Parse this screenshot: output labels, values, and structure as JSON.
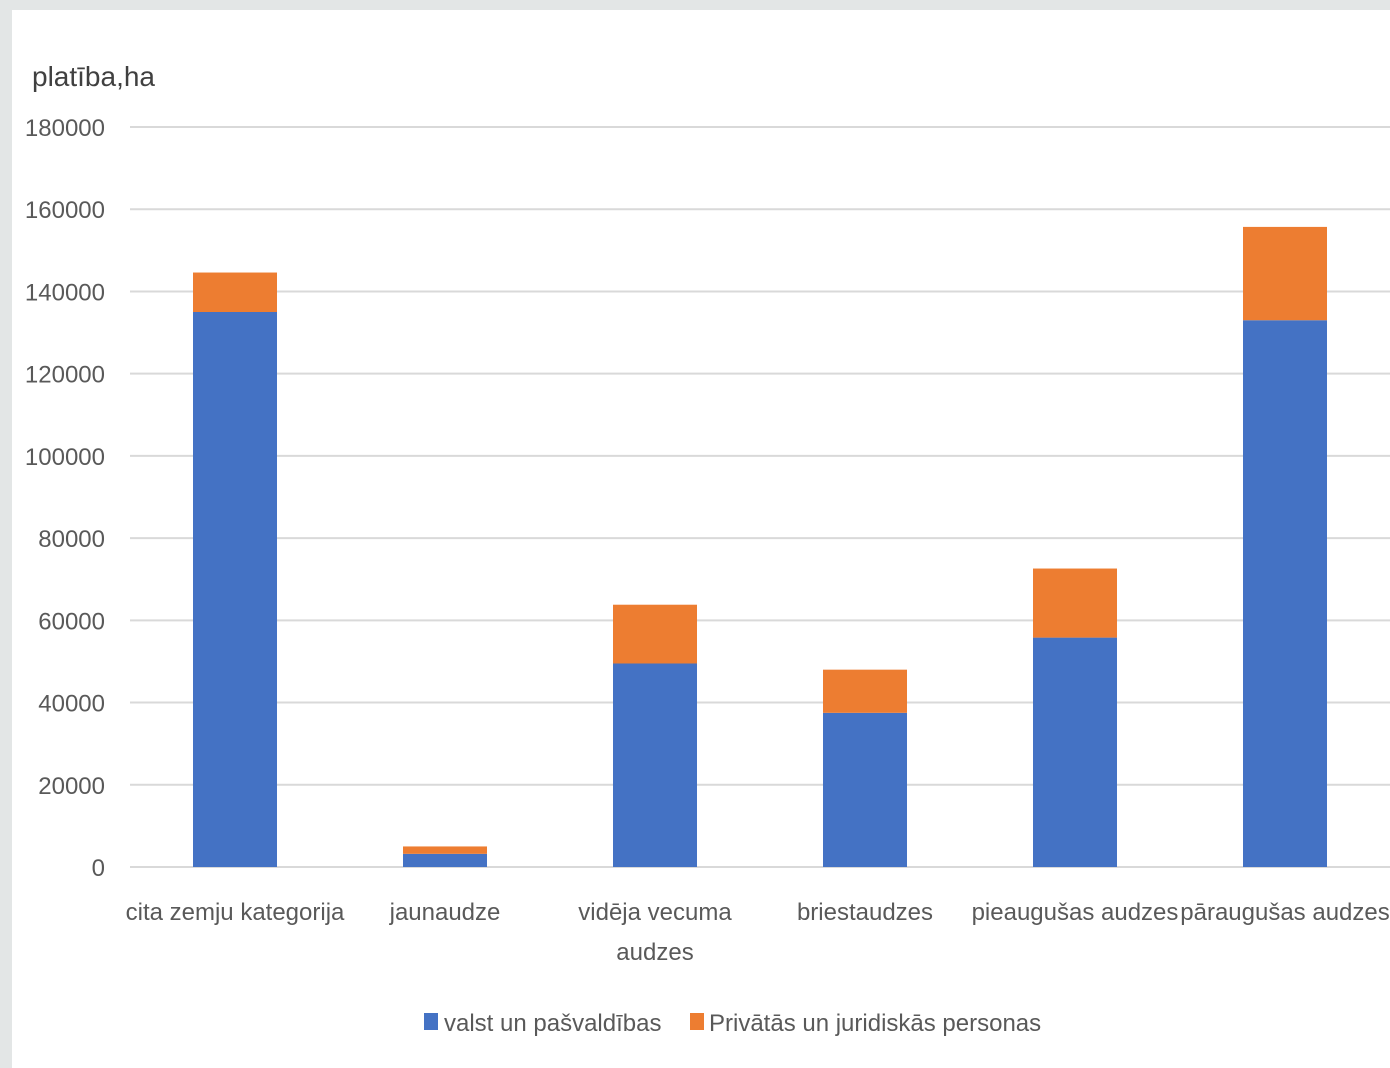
{
  "chart_data": {
    "type": "bar",
    "stacked": true,
    "ylabel": "platība,ha",
    "ylim": [
      0,
      180000
    ],
    "yticks": [
      0,
      20000,
      40000,
      60000,
      80000,
      100000,
      120000,
      140000,
      160000,
      180000
    ],
    "ytick_labels": [
      "0",
      "20000",
      "40000",
      "60000",
      "80000",
      "100000",
      "120000",
      "140000",
      "160000",
      "180000"
    ],
    "grid": true,
    "legend_position": "bottom",
    "categories": [
      [
        "cita zemju kategorija"
      ],
      [
        "jaunaudze"
      ],
      [
        "vidēja vecuma",
        "audzes"
      ],
      [
        "briestaudzes"
      ],
      [
        "pieaugušas audzes"
      ],
      [
        "pāraugušas audzes"
      ]
    ],
    "series": [
      {
        "name": "valst un pašvaldības",
        "color": "#4472c4",
        "values": [
          135000,
          3200,
          49500,
          37500,
          55800,
          133000
        ]
      },
      {
        "name": "Privātās un juridiskās personas",
        "color": "#ed7d31",
        "values": [
          9600,
          1800,
          14300,
          10500,
          16800,
          22700
        ]
      }
    ]
  }
}
